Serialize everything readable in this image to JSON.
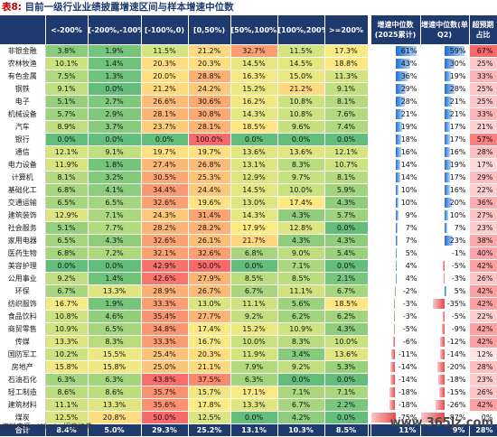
{
  "title_label": "表8:",
  "title_text": "目前一级行业业绩披露增速区间与样本增速中位数",
  "headers": [
    "",
    "<-200%",
    "[-200%,-100%)",
    "[-100%,0)",
    "[0,50%)",
    "[50%,100%)",
    "[100%,200%)",
    ">=200%",
    "增速中位数(2025累计)",
    "增速中位数(单Q2)",
    "超预期占比"
  ],
  "colors": {
    "green": "#63be7b",
    "lightgreen": "#c9e27f",
    "yellow": "#ffeb84",
    "orange": "#fcb475",
    "red": "#f8696b",
    "header": "#1f3a6e",
    "bar_pos": "#1f6fd1",
    "bar_neg": "#e74a4a"
  },
  "rows": [
    {
      "name": "非银金融",
      "v": [
        "3.8%",
        "1.9%",
        "11.5%",
        "21.2%",
        "32.7%",
        "11.5%",
        "17.3%"
      ],
      "m": 61,
      "q": 59,
      "r": "67%"
    },
    {
      "name": "农林牧渔",
      "v": [
        "10.1%",
        "1.4%",
        "20.3%",
        "20.3%",
        "14.5%",
        "14.5%",
        "18.8%"
      ],
      "m": 43,
      "q": 30,
      "r": "25%"
    },
    {
      "name": "有色金属",
      "v": [
        "7.5%",
        "1.3%",
        "20.0%",
        "28.8%",
        "16.3%",
        "15.0%",
        "11.3%"
      ],
      "m": 36,
      "q": 19,
      "r": "33%"
    },
    {
      "name": "钢铁",
      "v": [
        "9.1%",
        "0.0%",
        "21.2%",
        "24.2%",
        "15.2%",
        "21.2%",
        "9.1%"
      ],
      "m": 29,
      "q": 28,
      "r": "25%"
    },
    {
      "name": "电子",
      "v": [
        "5.1%",
        "2.7%",
        "26.6%",
        "30.6%",
        "16.2%",
        "10.8%",
        "8.1%"
      ],
      "m": 28,
      "q": 21,
      "r": "25%"
    },
    {
      "name": "机械设备",
      "v": [
        "5.7%",
        "2.9%",
        "28.1%",
        "30.8%",
        "14.3%",
        "10.8%",
        "7.6%"
      ],
      "m": 21,
      "q": 21,
      "r": "33%"
    },
    {
      "name": "汽车",
      "v": [
        "8.9%",
        "3.7%",
        "23.7%",
        "28.1%",
        "18.5%",
        "9.6%",
        "7.4%"
      ],
      "m": 19,
      "q": 17,
      "r": "21%"
    },
    {
      "name": "银行",
      "v": [
        "0.0%",
        "0.0%",
        "0.0%",
        "100.0%",
        "0.0%",
        "0.0%",
        "0.0%"
      ],
      "m": 18,
      "q": 17,
      "r": "57%"
    },
    {
      "name": "通信",
      "v": [
        "12.1%",
        "9.1%",
        "19.7%",
        "19.7%",
        "13.6%",
        "13.6%",
        "12.1%"
      ],
      "m": 16,
      "q": 16,
      "r": "28%"
    },
    {
      "name": "电力设备",
      "v": [
        "11.9%",
        "1.8%",
        "27.4%",
        "26.8%",
        "13.1%",
        "8.3%",
        "10.7%"
      ],
      "m": 14,
      "q": 19,
      "r": "17%"
    },
    {
      "name": "计算机",
      "v": [
        "8.1%",
        "3.2%",
        "30.5%",
        "25.3%",
        "12.9%",
        "9.7%",
        "8.1%"
      ],
      "m": 14,
      "q": 17,
      "r": "29%"
    },
    {
      "name": "基础化工",
      "v": [
        "6.8%",
        "4.1%",
        "34.4%",
        "24.4%",
        "14.5%",
        "10.0%",
        "5.9%"
      ],
      "m": 10,
      "q": 16,
      "r": "22%"
    },
    {
      "name": "交通运输",
      "v": [
        "6.5%",
        "6.5%",
        "32.6%",
        "19.6%",
        "13.0%",
        "17.4%",
        "4.3%"
      ],
      "m": 10,
      "q": 20,
      "r": "36%"
    },
    {
      "name": "建筑装饰",
      "v": [
        "12.9%",
        "7.1%",
        "24.3%",
        "31.4%",
        "14.3%",
        "4.3%",
        "5.7%"
      ],
      "m": 9,
      "q": 10,
      "r": "27%"
    },
    {
      "name": "社会服务",
      "v": [
        "5.1%",
        "7.7%",
        "28.2%",
        "28.2%",
        "17.9%",
        "12.8%",
        "0.0%"
      ],
      "m": 7,
      "q": 7,
      "r": "23%"
    },
    {
      "name": "家用电器",
      "v": [
        "6.5%",
        "4.3%",
        "32.6%",
        "26.1%",
        "21.7%",
        "4.3%",
        "4.3%"
      ],
      "m": 7,
      "q": 23,
      "r": "38%"
    },
    {
      "name": "医药生物",
      "v": [
        "6.8%",
        "7.2%",
        "32.1%",
        "32.6%",
        "6.8%",
        "9.0%",
        "5.4%"
      ],
      "m": 5,
      "q": -1,
      "r": "40%"
    },
    {
      "name": "美容护理",
      "v": [
        "0.0%",
        "0.0%",
        "42.9%",
        "50.0%",
        "0.0%",
        "7.1%",
        "0.0%"
      ],
      "m": 4,
      "q": -5,
      "r": "42%"
    },
    {
      "name": "公用事业",
      "v": [
        "9.2%",
        "1.4%",
        "42.6%",
        "27.9%",
        "8.5%",
        "8.5%",
        "2.1%"
      ],
      "m": 4,
      "q": -3,
      "r": "26%"
    },
    {
      "name": "环保",
      "v": [
        "6.7%",
        "13.3%",
        "28.9%",
        "26.7%",
        "6.7%",
        "11.1%",
        "6.7%"
      ],
      "m": -2,
      "q": 5,
      "r": "42%"
    },
    {
      "name": "纺织服饰",
      "v": [
        "16.7%",
        "1.9%",
        "33.3%",
        "13.0%",
        "11.1%",
        "5.6%",
        "18.5%"
      ],
      "m": -3,
      "q": -35,
      "r": "42%"
    },
    {
      "name": "食品饮料",
      "v": [
        "10.8%",
        "4.6%",
        "35.4%",
        "27.7%",
        "9.2%",
        "6.2%",
        "6.2%"
      ],
      "m": -3,
      "q": -5,
      "r": "22%"
    },
    {
      "name": "商贸零售",
      "v": [
        "10.9%",
        "6.5%",
        "34.8%",
        "17.4%",
        "15.2%",
        "10.9%",
        "4.3%"
      ],
      "m": -5,
      "q": -9,
      "r": "42%"
    },
    {
      "name": "传媒",
      "v": [
        "13.3%",
        "8.3%",
        "33.3%",
        "16.7%",
        "10.0%",
        "8.3%",
        "10.0%"
      ],
      "m": -6,
      "q": -12,
      "r": "42%"
    },
    {
      "name": "国防军工",
      "v": [
        "10.2%",
        "15.5%",
        "25.4%",
        "20.3%",
        "11.9%",
        "3.4%",
        "13.6%"
      ],
      "m": -11,
      "q": -14,
      "r": "12%"
    },
    {
      "name": "房地产",
      "v": [
        "15.8%",
        "15.8%",
        "25.0%",
        "21.1%",
        "7.9%",
        "9.2%",
        "5.3%"
      ],
      "m": -14,
      "q": -20,
      "r": "28%"
    },
    {
      "name": "石油石化",
      "v": [
        "6.3%",
        "6.3%",
        "43.8%",
        "37.5%",
        "6.3%",
        "0.0%",
        "0.0%"
      ],
      "m": -14,
      "q": -18,
      "r": "23%"
    },
    {
      "name": "轻工制造",
      "v": [
        "8.6%",
        "8.6%",
        "35.7%",
        "15.7%",
        "17.1%",
        "7.1%",
        "7.1%"
      ],
      "m": -18,
      "q": -15,
      "r": "26%"
    },
    {
      "name": "建筑材料",
      "v": [
        "11.1%",
        "13.3%",
        "35.6%",
        "17.8%",
        "13.3%",
        "6.7%",
        "2.2%"
      ],
      "m": -18,
      "q": -26,
      "r": "42%"
    },
    {
      "name": "煤炭",
      "v": [
        "12.5%",
        "20.8%",
        "50.0%",
        "12.5%",
        "0.0%",
        "4.2%",
        "0.0%"
      ],
      "m": -75,
      "q": -87,
      "r": "0%"
    }
  ],
  "total": {
    "name": "合计",
    "v": [
      "8.4%",
      "5.0%",
      "29.3%",
      "25.2%",
      "13.1%",
      "10.3%",
      "8.5%"
    ],
    "m": "11%",
    "q": "9%",
    "r": "28%"
  },
  "source": "资料来源：Wind，招商证券",
  "watermark": "www.365jz.com"
}
